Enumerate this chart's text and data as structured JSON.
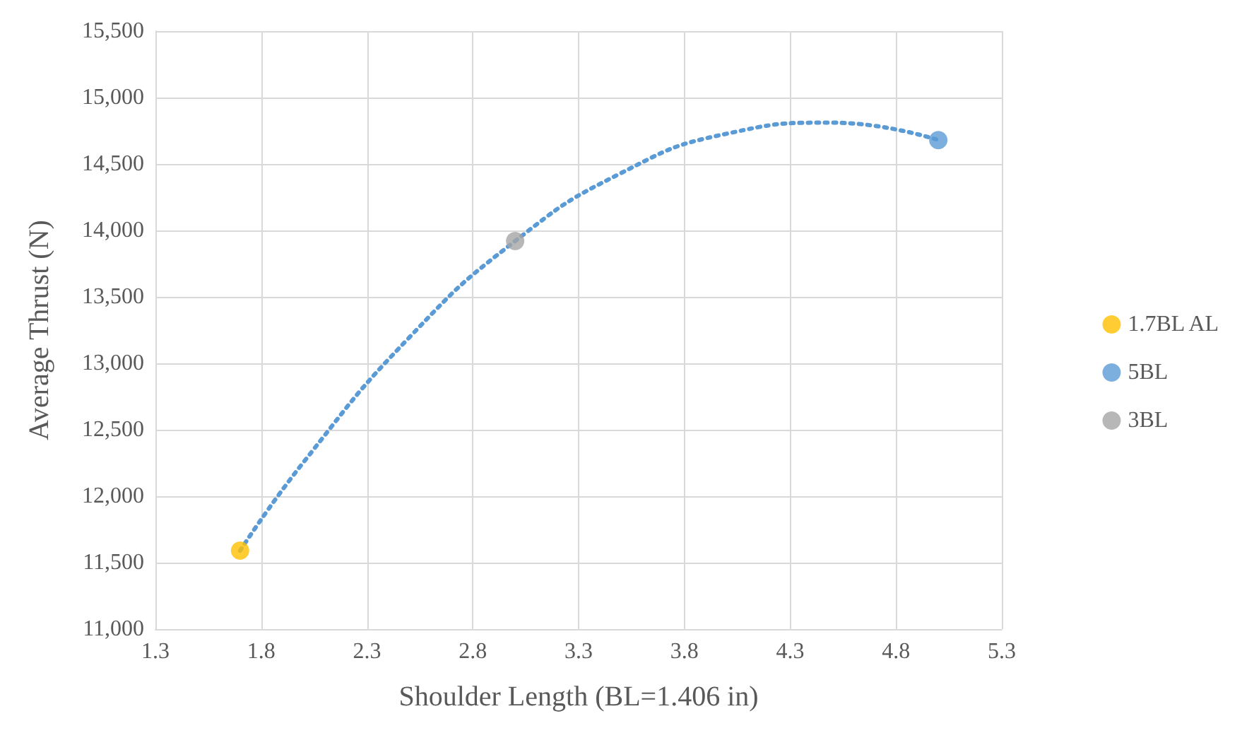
{
  "chart_data": {
    "type": "scatter",
    "xlabel": "Shoulder Length (BL=1.406 in)",
    "ylabel": "Average Thrust (N)",
    "xlim": [
      1.3,
      5.3
    ],
    "xticks": [
      1.3,
      1.8,
      2.3,
      2.8,
      3.3,
      3.8,
      4.3,
      4.8,
      5.3
    ],
    "ylim": [
      11000,
      15500
    ],
    "yticks": [
      {
        "value": 11000,
        "label": "11,000"
      },
      {
        "value": 11500,
        "label": "11,500"
      },
      {
        "value": 12000,
        "label": "12,000"
      },
      {
        "value": 12500,
        "label": "12,500"
      },
      {
        "value": 13000,
        "label": "13,000"
      },
      {
        "value": 13500,
        "label": "13,500"
      },
      {
        "value": 14000,
        "label": "14,000"
      },
      {
        "value": 14500,
        "label": "14,500"
      },
      {
        "value": 15000,
        "label": "15,000"
      },
      {
        "value": 15500,
        "label": "15,500"
      }
    ],
    "grid": true,
    "legend": "right",
    "marker": "circle",
    "series": [
      {
        "name": "1.7BL AL",
        "color": "#ffc000",
        "x": [
          1.7
        ],
        "values": [
          11590
        ]
      },
      {
        "name": "5BL",
        "color": "#5b9bd5",
        "x": [
          5.0
        ],
        "values": [
          14680
        ]
      },
      {
        "name": "3BL",
        "color": "#a5a5a5",
        "x": [
          3.0
        ],
        "values": [
          13920
        ]
      },
      {
        "type": "line",
        "color": "#5b9bd5",
        "line_style": "dotted",
        "marker": "none",
        "x": [
          1.7,
          2.0,
          2.5,
          3.0,
          3.5,
          4.0,
          4.5,
          5.0
        ],
        "values": [
          11590,
          12256,
          13195,
          13920,
          14431,
          14728,
          14811,
          14680
        ]
      }
    ]
  }
}
